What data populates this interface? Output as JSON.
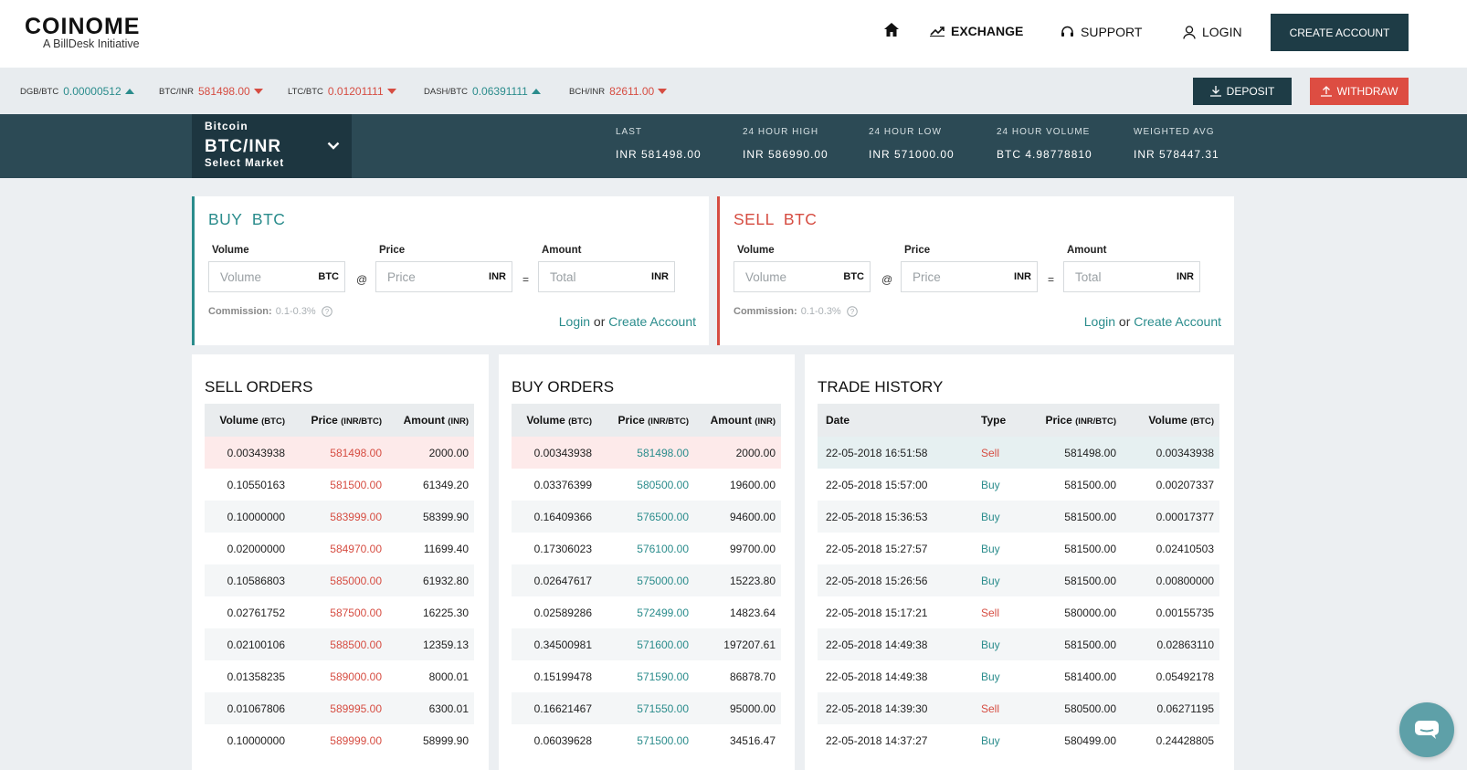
{
  "brand": {
    "name": "COINOME",
    "tagline": "A BillDesk Initiative"
  },
  "nav": {
    "exchange": "EXCHANGE",
    "support": "SUPPORT",
    "login": "LOGIN",
    "create_account": "CREATE ACCOUNT"
  },
  "ticker": [
    {
      "pair": "DGB/BTC",
      "value": "0.00000512",
      "dir": "up"
    },
    {
      "pair": "BTC/INR",
      "value": "581498.00",
      "dir": "down"
    },
    {
      "pair": "LTC/BTC",
      "value": "0.01201111",
      "dir": "down"
    },
    {
      "pair": "DASH/BTC",
      "value": "0.06391111",
      "dir": "up"
    },
    {
      "pair": "BCH/INR",
      "value": "82611.00",
      "dir": "down"
    }
  ],
  "actions": {
    "deposit": "DEPOSIT",
    "withdraw": "WITHDRAW"
  },
  "market": {
    "coin": "Bitcoin",
    "pair": "BTC/INR",
    "select_label": "Select Market"
  },
  "stats": [
    {
      "label": "LAST",
      "value": "INR 581498.00"
    },
    {
      "label": "24 HOUR HIGH",
      "value": "INR 586990.00"
    },
    {
      "label": "24 HOUR LOW",
      "value": "INR 571000.00"
    },
    {
      "label": "24 HOUR VOLUME",
      "value": "BTC 4.98778810"
    },
    {
      "label": "WEIGHTED AVG",
      "value": "INR 578447.31"
    }
  ],
  "buy_form": {
    "title": "BUY  BTC",
    "volume_label": "Volume",
    "volume_ph": "Volume",
    "volume_unit": "BTC",
    "price_label": "Price",
    "price_ph": "Price",
    "price_unit": "INR",
    "amount_label": "Amount",
    "amount_ph": "Total",
    "amount_unit": "INR",
    "at": "@",
    "eq": "=",
    "commission_label": "Commission:",
    "commission_value": "0.1-0.3%",
    "login": "Login",
    "or": "or",
    "create": "Create Account"
  },
  "sell_form": {
    "title": "SELL  BTC",
    "volume_label": "Volume",
    "volume_ph": "Volume",
    "volume_unit": "BTC",
    "price_label": "Price",
    "price_ph": "Price",
    "price_unit": "INR",
    "amount_label": "Amount",
    "amount_ph": "Total",
    "amount_unit": "INR",
    "at": "@",
    "eq": "=",
    "commission_label": "Commission:",
    "commission_value": "0.1-0.3%",
    "login": "Login",
    "or": "or",
    "create": "Create Account"
  },
  "sell_orders": {
    "title": "SELL ORDERS",
    "headers": {
      "volume": "Volume",
      "volume_unit": "(BTC)",
      "price": "Price",
      "price_unit": "(INR/BTC)",
      "amount": "Amount",
      "amount_unit": "(INR)"
    },
    "rows": [
      [
        "0.00343938",
        "581498.00",
        "2000.00"
      ],
      [
        "0.10550163",
        "581500.00",
        "61349.20"
      ],
      [
        "0.10000000",
        "583999.00",
        "58399.90"
      ],
      [
        "0.02000000",
        "584970.00",
        "11699.40"
      ],
      [
        "0.10586803",
        "585000.00",
        "61932.80"
      ],
      [
        "0.02761752",
        "587500.00",
        "16225.30"
      ],
      [
        "0.02100106",
        "588500.00",
        "12359.13"
      ],
      [
        "0.01358235",
        "589000.00",
        "8000.01"
      ],
      [
        "0.01067806",
        "589995.00",
        "6300.01"
      ],
      [
        "0.10000000",
        "589999.00",
        "58999.90"
      ]
    ]
  },
  "buy_orders": {
    "title": "BUY ORDERS",
    "headers": {
      "volume": "Volume",
      "volume_unit": "(BTC)",
      "price": "Price",
      "price_unit": "(INR/BTC)",
      "amount": "Amount",
      "amount_unit": "(INR)"
    },
    "rows": [
      [
        "0.00343938",
        "581498.00",
        "2000.00"
      ],
      [
        "0.03376399",
        "580500.00",
        "19600.00"
      ],
      [
        "0.16409366",
        "576500.00",
        "94600.00"
      ],
      [
        "0.17306023",
        "576100.00",
        "99700.00"
      ],
      [
        "0.02647617",
        "575000.00",
        "15223.80"
      ],
      [
        "0.02589286",
        "572499.00",
        "14823.64"
      ],
      [
        "0.34500981",
        "571600.00",
        "197207.61"
      ],
      [
        "0.15199478",
        "571590.00",
        "86878.70"
      ],
      [
        "0.16621467",
        "571550.00",
        "95000.00"
      ],
      [
        "0.06039628",
        "571500.00",
        "34516.47"
      ]
    ]
  },
  "trade_history": {
    "title": "TRADE HISTORY",
    "headers": {
      "date": "Date",
      "type": "Type",
      "price": "Price",
      "price_unit": "(INR/BTC)",
      "volume": "Volume",
      "volume_unit": "(BTC)"
    },
    "rows": [
      [
        "22-05-2018 16:51:58",
        "Sell",
        "581498.00",
        "0.00343938"
      ],
      [
        "22-05-2018 15:57:00",
        "Buy",
        "581500.00",
        "0.00207337"
      ],
      [
        "22-05-2018 15:36:53",
        "Buy",
        "581500.00",
        "0.00017377"
      ],
      [
        "22-05-2018 15:27:57",
        "Buy",
        "581500.00",
        "0.02410503"
      ],
      [
        "22-05-2018 15:26:56",
        "Buy",
        "581500.00",
        "0.00800000"
      ],
      [
        "22-05-2018 15:17:21",
        "Sell",
        "580000.00",
        "0.00155735"
      ],
      [
        "22-05-2018 14:49:38",
        "Buy",
        "581500.00",
        "0.02863110"
      ],
      [
        "22-05-2018 14:49:38",
        "Buy",
        "581400.00",
        "0.05492178"
      ],
      [
        "22-05-2018 14:39:30",
        "Sell",
        "580500.00",
        "0.06271195"
      ],
      [
        "22-05-2018 14:37:27",
        "Buy",
        "580499.00",
        "0.24428805"
      ]
    ]
  },
  "colors": {
    "teal": "#2a8c8c",
    "red": "#d64d42",
    "navy": "#1e3c46"
  }
}
